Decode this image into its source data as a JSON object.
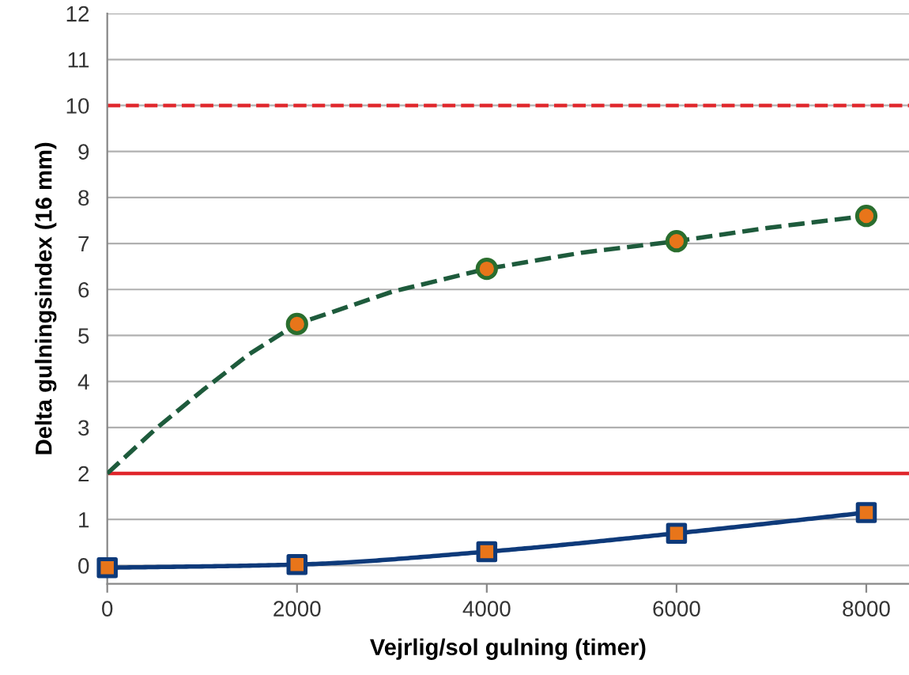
{
  "chart_data": {
    "type": "line",
    "xlabel": "Vejrlig/sol gulning (timer)",
    "ylabel": "Delta gulningsindex (16 mm)",
    "series": [
      {
        "x": [
          0,
          500,
          1000,
          1500,
          2000,
          3000,
          4000,
          5000,
          6000,
          7000,
          8000
        ],
        "values": [
          2,
          2.95,
          3.8,
          4.6,
          5.25,
          5.95,
          6.45,
          6.8,
          7.05,
          7.35,
          7.6
        ],
        "color": "#1e5b3c",
        "line_style": "dashed",
        "marker": "none"
      },
      {
        "type": "scatter",
        "x": [
          2000,
          4000,
          6000,
          8000
        ],
        "values": [
          5.25,
          6.45,
          7.05,
          7.6
        ],
        "color": "#2a6e2e",
        "colors": [
          "#e8751a",
          "#e8751a",
          "#e8751a",
          "#e8751a"
        ],
        "marker": "circle"
      },
      {
        "type": "line",
        "x": [
          0,
          2000,
          4000,
          6000,
          8000
        ],
        "values": [
          -0.05,
          0.02,
          0.3,
          0.7,
          1.15
        ],
        "color": "#0e3a7a",
        "colors": [
          "#e8751a",
          "#e8751a",
          "#e8751a",
          "#e8751a",
          "#e8751a"
        ],
        "line_style": "solid",
        "marker": "square"
      }
    ],
    "ref_lines": [
      {
        "axis": "y",
        "value": 10,
        "color": "#e0262b",
        "line_style": "dashed"
      },
      {
        "axis": "y",
        "value": 2,
        "color": "#e0262b",
        "line_style": "solid"
      }
    ],
    "xlim": [
      0,
      8450
    ],
    "xticks": [
      0,
      2000,
      4000,
      6000,
      8000
    ],
    "ylim": [
      -0.4,
      12
    ],
    "yticks": [
      0,
      1,
      2,
      3,
      4,
      5,
      6,
      7,
      8,
      9,
      10,
      11,
      12
    ],
    "grid": "y",
    "legend": false
  }
}
